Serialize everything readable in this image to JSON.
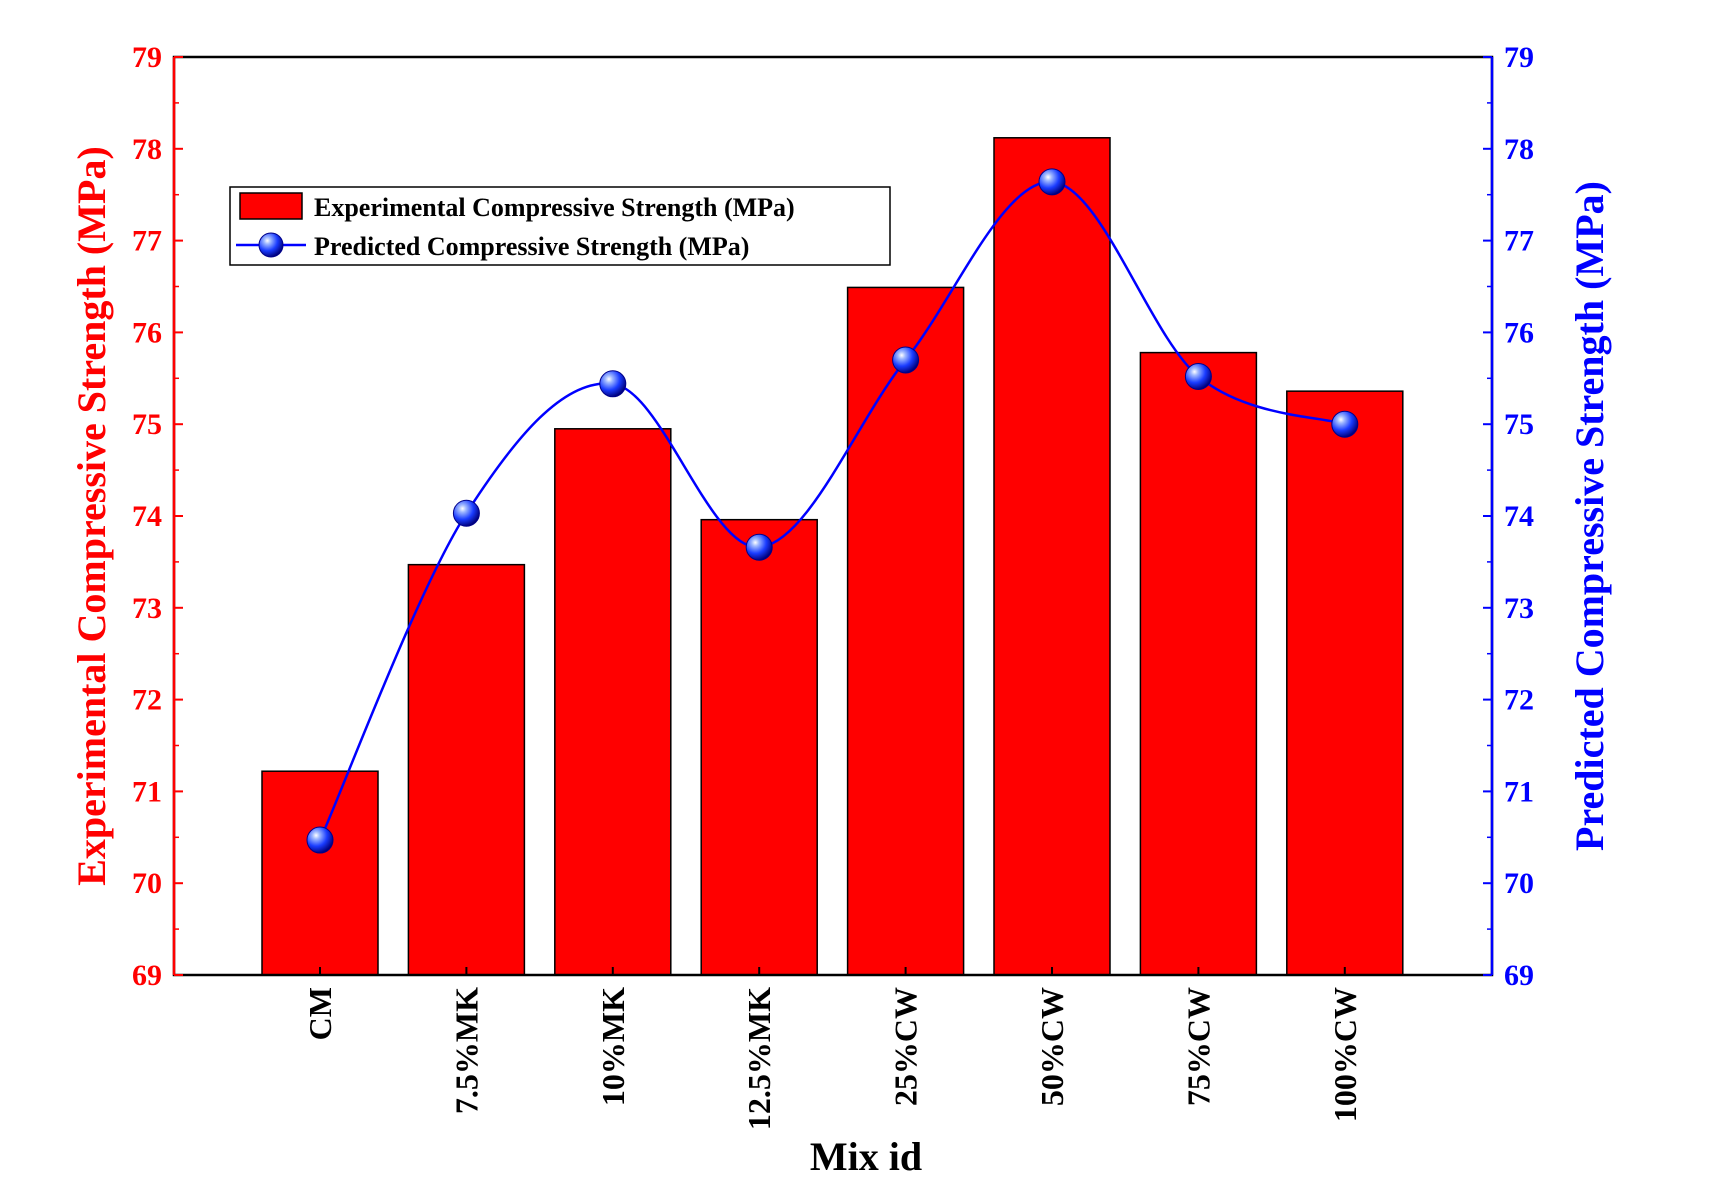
{
  "chart_data": {
    "type": "bar",
    "xlabel": "Mix id",
    "categories": [
      "CM",
      "7.5%MK",
      "10%MK",
      "12.5%MK",
      "25%CW",
      "50%CW",
      "75%CW",
      "100%CW"
    ],
    "series": [
      {
        "name": "Experimental Compressive Strength (MPa)",
        "type": "bar",
        "axis": "left",
        "color": "#ff0000",
        "values": [
          71.22,
          73.47,
          74.95,
          73.96,
          76.49,
          78.12,
          75.78,
          75.36
        ]
      },
      {
        "name": "Predicted Compressive Strength (MPa)",
        "type": "line",
        "axis": "right",
        "color": "#0000ff",
        "values": [
          70.47,
          74.03,
          75.44,
          73.66,
          75.7,
          77.64,
          75.52,
          75.0
        ]
      }
    ],
    "ylabel_left": "Experimental Compressive Strength (MPa)",
    "ylabel_right": "Predicted Compressive Strength (MPa)",
    "ylim": [
      69,
      79
    ],
    "yticks": [
      "69",
      "70",
      "71",
      "72",
      "73",
      "74",
      "75",
      "76",
      "77",
      "78",
      "79"
    ],
    "legend_position": "top-left",
    "grid": false,
    "colors": {
      "left_axis": "#ff0000",
      "right_axis": "#0000ff",
      "bar_fill": "#ff0000",
      "line": "#0000ff"
    }
  }
}
